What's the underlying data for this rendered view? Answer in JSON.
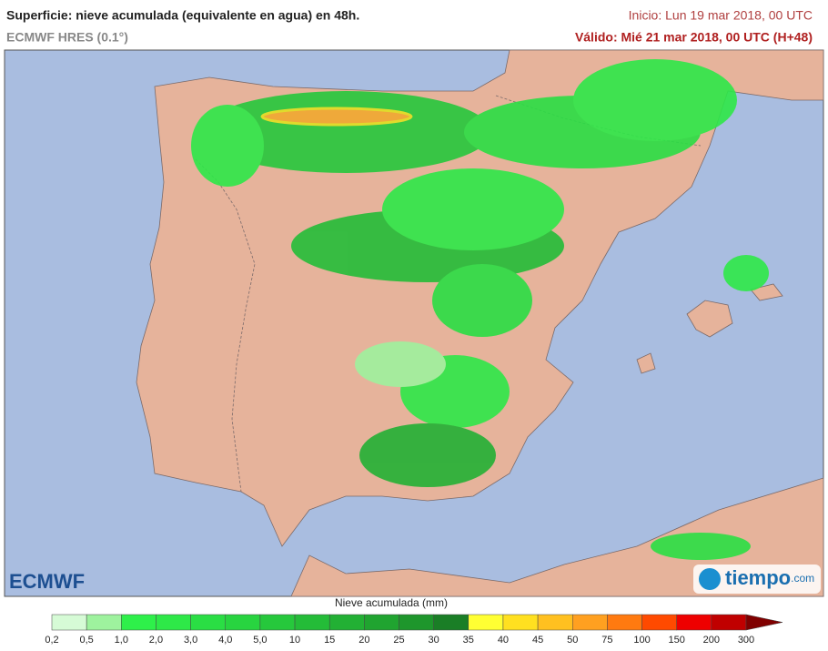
{
  "header": {
    "title": "Superficie: nieve acumulada (equivalente en agua) en 48h.",
    "model": "ECMWF HRES (0.1°)",
    "start": "Inicio: Lun 19 mar 2018, 00 UTC",
    "valid": "Válido: Mié 21 mar 2018, 00 UTC (H+48)"
  },
  "logos": {
    "left": "ECMWF",
    "right": "tiempo",
    "right_suffix": ".com"
  },
  "legend": {
    "title": "Nieve acumulada (mm)",
    "ticks": [
      "0,2",
      "0,5",
      "1,0",
      "2,0",
      "3,0",
      "4,0",
      "5,0",
      "10",
      "15",
      "20",
      "25",
      "30",
      "35",
      "40",
      "45",
      "50",
      "75",
      "100",
      "150",
      "200",
      "300"
    ],
    "colors": [
      "#d6fbd6",
      "#9ef29e",
      "#2ef04a",
      "#2ee848",
      "#2ade44",
      "#28d440",
      "#26c83c",
      "#24bc38",
      "#22b034",
      "#20a430",
      "#1e962c",
      "#1a7e26",
      "#ffff33",
      "#ffe020",
      "#ffc020",
      "#ffa020",
      "#ff7a10",
      "#ff4a00",
      "#ee0000",
      "#c00000"
    ],
    "arrow_color": "#800000"
  }
}
